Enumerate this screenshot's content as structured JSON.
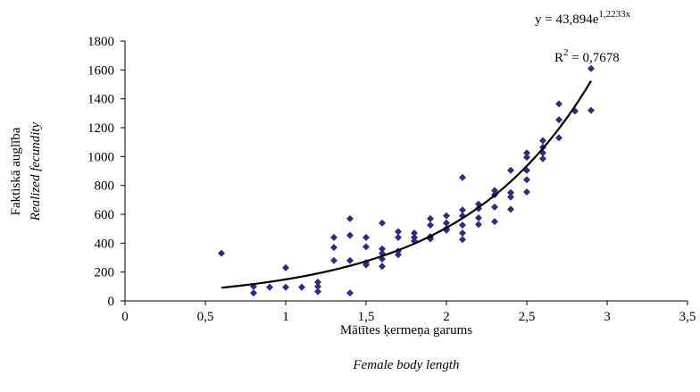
{
  "chart_data": {
    "type": "scatter",
    "xlabel": [
      "Mātītes ķermeņa garums",
      "Female body length"
    ],
    "ylabel": [
      "Faktiskā auglība",
      "Realized fecundity"
    ],
    "equation": {
      "prefix": "y = 43,894e",
      "exponent": "1,2233x"
    },
    "r_squared": {
      "prefix": "R",
      "exponent": "2",
      "rest": " = 0,7678"
    },
    "trendline": {
      "a": 43.894,
      "b": 1.2233,
      "xlim": [
        0.6,
        2.9
      ],
      "color": "#000000"
    },
    "color": "#2e2c80",
    "xlim": [
      0,
      3.5
    ],
    "xticks": [
      0,
      {
        "value": 0.5,
        "label": "0,5"
      },
      1,
      {
        "value": 1.5,
        "label": "1,5"
      },
      2,
      {
        "value": 2.5,
        "label": "2,5"
      },
      3,
      {
        "value": 3.5,
        "label": "3,5"
      }
    ],
    "ylim": [
      0,
      1800
    ],
    "yticks": [
      0,
      200,
      400,
      600,
      800,
      1000,
      1200,
      1400,
      1600,
      1800
    ],
    "grid": false,
    "series": [
      {
        "name": null,
        "x": [
          0.6,
          0.8,
          0.8,
          0.9,
          1.0,
          1.0,
          1.1,
          1.2,
          1.2,
          1.2,
          1.3,
          1.3,
          1.3,
          1.4,
          1.4,
          1.4,
          1.4,
          1.5,
          1.5,
          1.5,
          1.5,
          1.6,
          1.6,
          1.6,
          1.6,
          1.6,
          1.7,
          1.7,
          1.7,
          1.7,
          1.8,
          1.8,
          1.8,
          1.9,
          1.9,
          1.9,
          1.9,
          2.0,
          2.0,
          2.0,
          2.0,
          2.1,
          2.1,
          2.1,
          2.1,
          2.1,
          2.1,
          2.2,
          2.2,
          2.2,
          2.2,
          2.3,
          2.3,
          2.3,
          2.3,
          2.4,
          2.4,
          2.4,
          2.4,
          2.5,
          2.5,
          2.5,
          2.5,
          2.5,
          2.6,
          2.6,
          2.6,
          2.6,
          2.7,
          2.7,
          2.7,
          2.8,
          2.9,
          2.9
        ],
        "values": [
          330,
          100,
          55,
          95,
          230,
          95,
          95,
          130,
          100,
          65,
          440,
          370,
          280,
          570,
          455,
          280,
          55,
          440,
          375,
          265,
          250,
          540,
          360,
          330,
          290,
          240,
          480,
          440,
          345,
          320,
          470,
          440,
          415,
          570,
          525,
          445,
          430,
          590,
          540,
          500,
          490,
          855,
          630,
          590,
          525,
          470,
          425,
          670,
          640,
          575,
          530,
          765,
          735,
          650,
          550,
          905,
          750,
          720,
          635,
          1025,
          995,
          905,
          840,
          755,
          1110,
          1065,
          1025,
          985,
          1365,
          1255,
          1130,
          1315,
          1610,
          1320
        ]
      }
    ]
  }
}
